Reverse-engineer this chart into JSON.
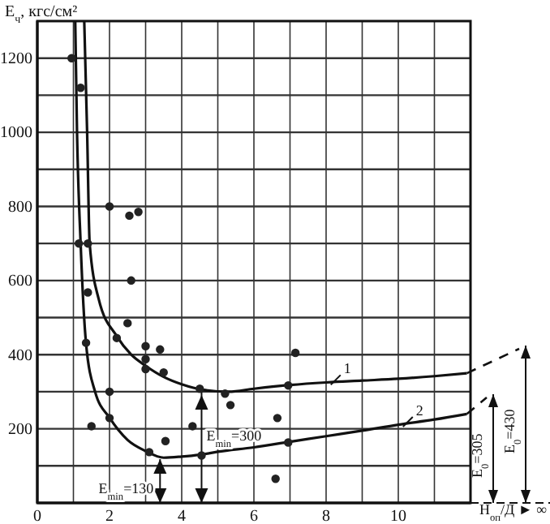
{
  "chart_data": {
    "type": "scatter",
    "ylabel": "E$_{ч}$, кгс/см²",
    "xlabel": "H$_{оп}$/Д ► ∞",
    "xlim": [
      0,
      12
    ],
    "ylim": [
      0,
      1300
    ],
    "xticks": [
      0,
      {
        "value": 1,
        "label": null
      },
      2,
      {
        "value": 3,
        "label": null
      },
      4,
      {
        "value": 5,
        "label": null
      },
      6,
      {
        "value": 7,
        "label": null
      },
      8,
      {
        "value": 9,
        "label": null
      },
      10,
      {
        "value": 11,
        "label": null
      }
    ],
    "yticks": [
      {
        "value": 100,
        "label": null
      },
      200,
      {
        "value": 300,
        "label": null
      },
      400,
      {
        "value": 500,
        "label": null
      },
      600,
      {
        "value": 700,
        "label": null
      },
      800,
      {
        "value": 900,
        "label": null
      },
      1000,
      {
        "value": 1100,
        "label": null
      },
      1200
    ],
    "grid": true,
    "series": [
      {
        "color": "#222222",
        "x": [
          0.95,
          1.2,
          2.0,
          2.55,
          2.8,
          1.15,
          1.4,
          1.4,
          2.6,
          2.5,
          2.2,
          1.35,
          3.0,
          3.4,
          3.0,
          3.0,
          3.5,
          2.0,
          4.5,
          5.2,
          5.35,
          1.5,
          2.0,
          4.3,
          3.55,
          3.1,
          4.55,
          6.6,
          7.15,
          6.95,
          6.65,
          6.95
        ],
        "values": [
          1200,
          1120,
          800,
          775,
          785,
          700,
          700,
          568,
          600,
          485,
          445,
          432,
          423,
          414,
          388,
          361,
          352,
          300,
          308,
          295,
          264,
          207,
          229,
          207,
          167,
          137,
          128,
          65,
          405,
          317,
          229,
          163
        ]
      },
      {
        "type": "line",
        "color": "#111111",
        "x": [
          1.3,
          1.38,
          1.45,
          1.7,
          2.2,
          2.6,
          3.0,
          3.5,
          4.0,
          4.6,
          5.3,
          6.0,
          7.0,
          8.0,
          9.0,
          10.0,
          11.0,
          11.9
        ],
        "values": [
          1300,
          1000,
          700,
          550,
          450,
          400,
          370,
          340,
          320,
          305,
          300,
          308,
          318,
          325,
          330,
          335,
          342,
          350
        ]
      },
      {
        "type": "line",
        "color": "#111111",
        "x": [
          1.05,
          1.1,
          1.2,
          1.35,
          1.6,
          2.0,
          2.5,
          3.0,
          3.5,
          4.0,
          4.5,
          5.0,
          6.0,
          7.0,
          8.0,
          9.0,
          10.0,
          11.0,
          11.9
        ],
        "values": [
          1300,
          1000,
          700,
          430,
          300,
          230,
          170,
          140,
          122,
          125,
          130,
          138,
          150,
          165,
          180,
          195,
          211,
          225,
          240
        ]
      }
    ],
    "annotations": [
      {
        "text": "1",
        "x": 8.4,
        "y": 345
      },
      {
        "text": "2",
        "x": 10.4,
        "y": 232
      },
      {
        "text": "E$_{min}$=300",
        "x": 4.55,
        "y": 300
      },
      {
        "text": "E$_{min}$=130",
        "x": 3.4,
        "y": 118
      },
      "E$_{0}$=305",
      "E$_{0}$=430"
    ]
  }
}
